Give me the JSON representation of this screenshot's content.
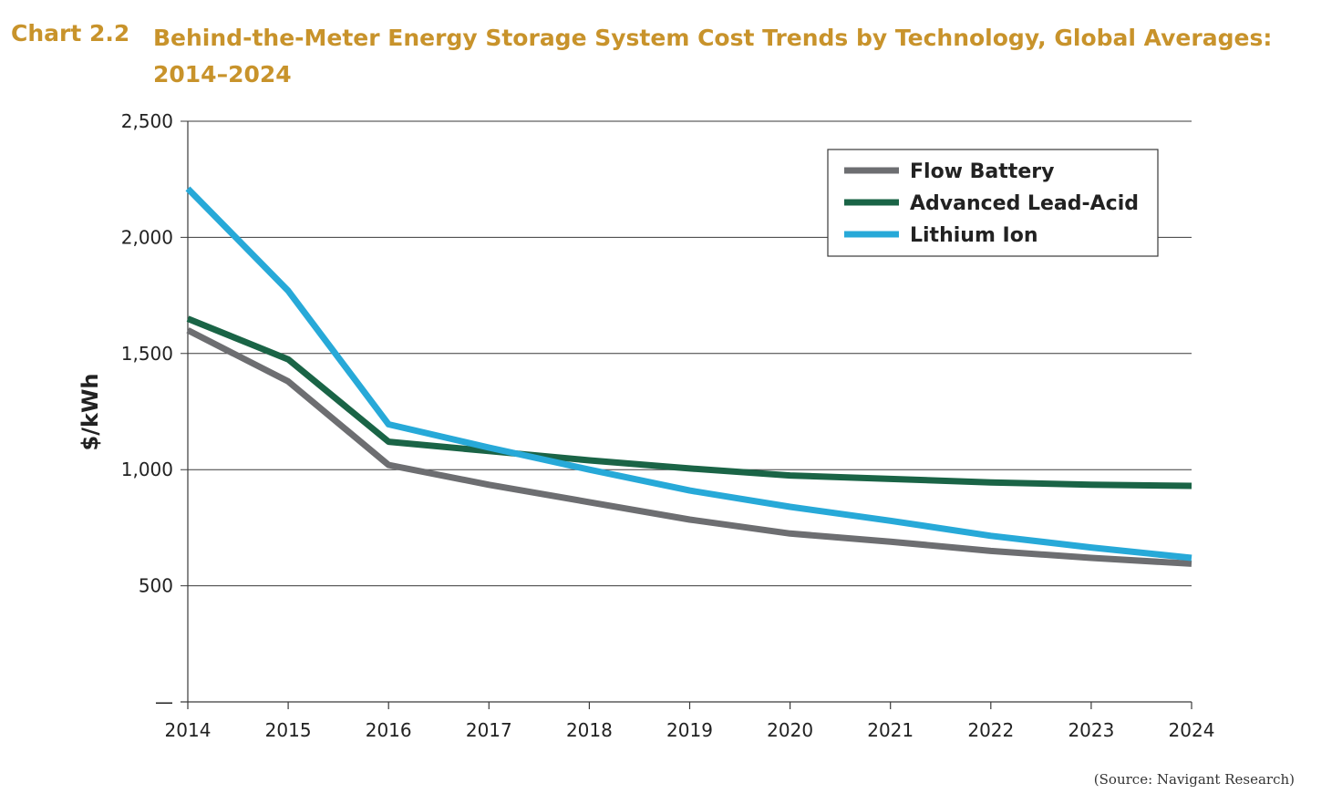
{
  "header": {
    "chart_label": "Chart 2.2",
    "title": "Behind-the-Meter Energy Storage System Cost Trends by Technology, Global Averages: 2014–2024"
  },
  "source": "(Source: Navigant Research)",
  "colors": {
    "title": "#c8932b",
    "flow": "#6d6e71",
    "lead": "#1a6446",
    "lithium": "#27a9d8"
  },
  "chart_data": {
    "type": "line",
    "title": "Behind-the-Meter Energy Storage System Cost Trends by Technology, Global Averages: 2014–2024",
    "xlabel": "",
    "ylabel": "$/kWh",
    "x": [
      "2014",
      "2015",
      "2016",
      "2017",
      "2018",
      "2019",
      "2020",
      "2021",
      "2022",
      "2023",
      "2024"
    ],
    "ylim": [
      0,
      2500
    ],
    "yticks": [
      0,
      500,
      1000,
      1500,
      2000,
      2500
    ],
    "ytick_labels": [
      "—",
      "500",
      "1,000",
      "1,500",
      "2,000",
      "2,500"
    ],
    "grid": true,
    "legend_position": "top-right",
    "series": [
      {
        "name": "Flow Battery",
        "color": "#6d6e71",
        "values": [
          1600,
          1380,
          1020,
          935,
          860,
          785,
          725,
          690,
          650,
          620,
          595
        ]
      },
      {
        "name": "Advanced Lead-Acid",
        "color": "#1a6446",
        "values": [
          1650,
          1475,
          1120,
          1080,
          1040,
          1005,
          975,
          960,
          945,
          935,
          930
        ]
      },
      {
        "name": "Lithium Ion",
        "color": "#27a9d8",
        "values": [
          2210,
          1770,
          1195,
          1095,
          1000,
          910,
          840,
          780,
          715,
          665,
          620
        ]
      }
    ]
  }
}
